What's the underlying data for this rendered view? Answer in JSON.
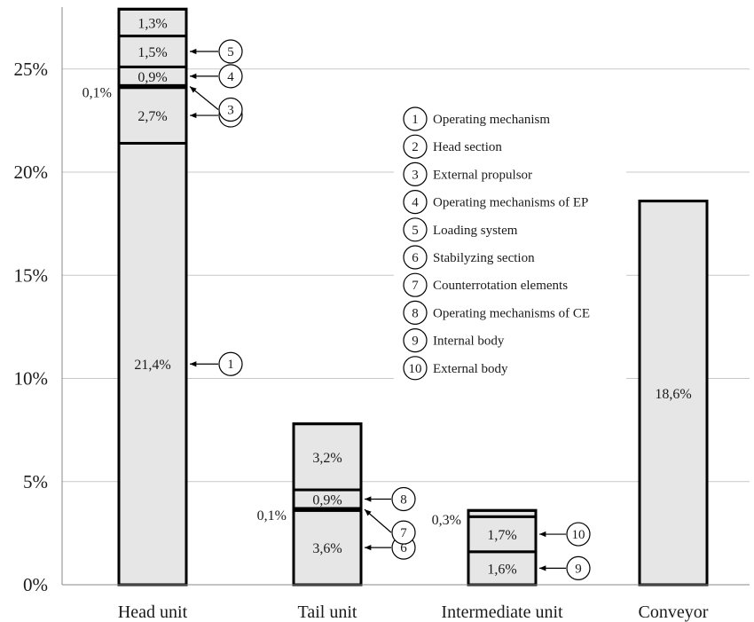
{
  "chart_data": {
    "type": "bar",
    "stacked": true,
    "title": "",
    "xlabel": "",
    "ylabel": "",
    "ylim": [
      0,
      0.28
    ],
    "yticks": [
      {
        "value": 0,
        "label": "0%"
      },
      {
        "value": 0.05,
        "label": "5%"
      },
      {
        "value": 0.1,
        "label": "10%"
      },
      {
        "value": 0.15,
        "label": "15%"
      },
      {
        "value": 0.2,
        "label": "20%"
      },
      {
        "value": 0.25,
        "label": "25%"
      }
    ],
    "grid": true,
    "categories": [
      "Head unit",
      "Tail unit",
      "Intermediate unit",
      "Conveyor"
    ],
    "bars": [
      {
        "category": "Head unit",
        "segments": [
          {
            "value": 0.214,
            "label": "21,4%",
            "marker": "1",
            "label_pos": "inside"
          },
          {
            "value": 0.027,
            "label": "2,7%",
            "marker": "2",
            "label_pos": "inside"
          },
          {
            "value": 0.001,
            "label": "0,1%",
            "marker": "3",
            "label_pos": "left"
          },
          {
            "value": 0.009,
            "label": "0,9%",
            "marker": "4",
            "label_pos": "inside"
          },
          {
            "value": 0.015,
            "label": "1,5%",
            "marker": "5",
            "label_pos": "inside"
          },
          {
            "value": 0.013,
            "label": "1,3%",
            "marker": "",
            "label_pos": "inside"
          }
        ]
      },
      {
        "category": "Tail unit",
        "segments": [
          {
            "value": 0.036,
            "label": "3,6%",
            "marker": "6",
            "label_pos": "inside"
          },
          {
            "value": 0.001,
            "label": "0,1%",
            "marker": "7",
            "label_pos": "left"
          },
          {
            "value": 0.009,
            "label": "0,9%",
            "marker": "8",
            "label_pos": "inside"
          },
          {
            "value": 0.032,
            "label": "3,2%",
            "marker": "",
            "label_pos": "inside"
          }
        ]
      },
      {
        "category": "Intermediate unit",
        "segments": [
          {
            "value": 0.016,
            "label": "1,6%",
            "marker": "9",
            "label_pos": "inside"
          },
          {
            "value": 0.017,
            "label": "1,7%",
            "marker": "10",
            "label_pos": "inside"
          },
          {
            "value": 0.003,
            "label": "0,3%",
            "marker": "",
            "label_pos": "left"
          }
        ]
      },
      {
        "category": "Conveyor",
        "segments": [
          {
            "value": 0.186,
            "label": "18,6%",
            "marker": "",
            "label_pos": "inside"
          }
        ]
      }
    ],
    "legend": {
      "placement": "center-right",
      "items": [
        {
          "number": "1",
          "label": "Operating mechanism"
        },
        {
          "number": "2",
          "label": "Head section"
        },
        {
          "number": "3",
          "label": "External propulsor"
        },
        {
          "number": "4",
          "label": "Operating mechanisms of EP"
        },
        {
          "number": "5",
          "label": "Loading system"
        },
        {
          "number": "6",
          "label": "Stabilyzing section"
        },
        {
          "number": "7",
          "label": "Counterrotation elements"
        },
        {
          "number": "8",
          "label": "Operating mechanisms of CE"
        },
        {
          "number": "9",
          "label": "Internal body"
        },
        {
          "number": "10",
          "label": "External body"
        }
      ]
    },
    "colors": {
      "bar_fill": "#e6e6e6",
      "bar_stroke": "#000000",
      "grid": "#c8c8c8",
      "axis": "#888888"
    }
  }
}
